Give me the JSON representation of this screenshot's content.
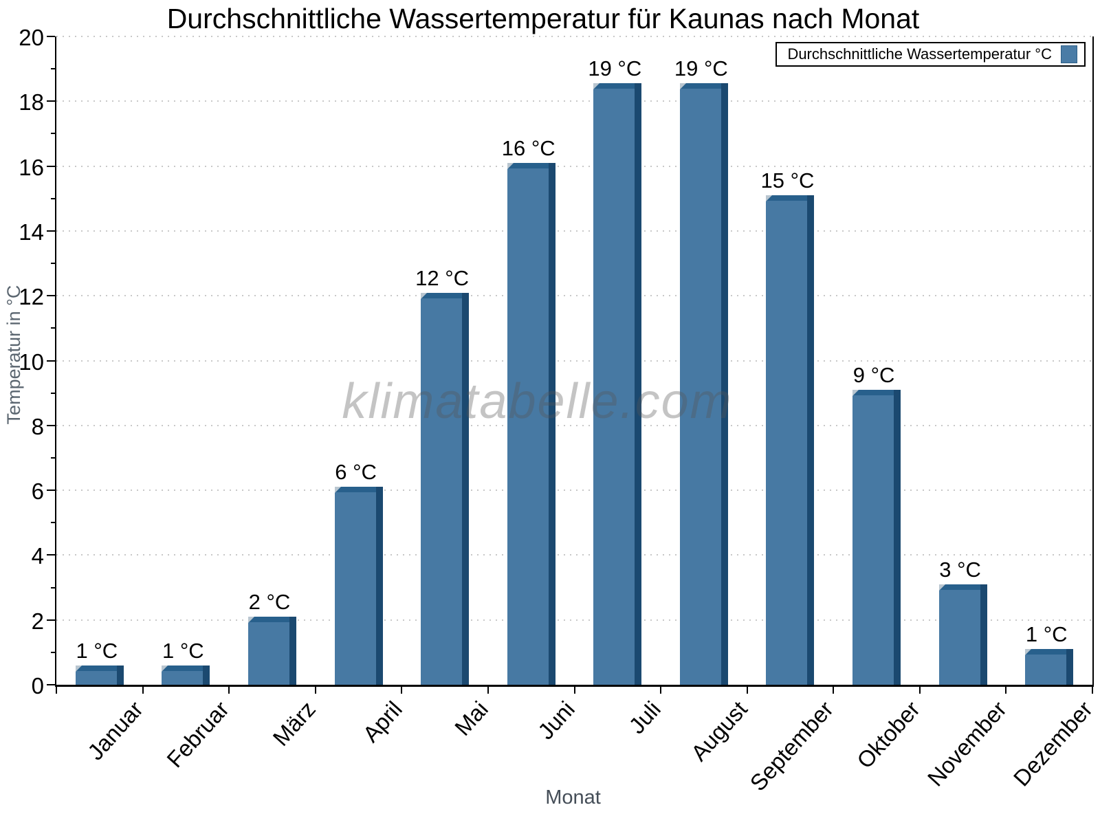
{
  "chart": {
    "title": "Durchschnittliche Wassertemperatur für Kaunas nach Monat",
    "legend_label": "Durchschnittliche Wassertemperatur °C",
    "watermark": "klimatabelle.com",
    "xlabel": "Monat",
    "ylabel": "Temperatur in °C"
  },
  "chart_data": {
    "type": "bar",
    "title": "Durchschnittliche Wassertemperatur für Kaunas nach Monat",
    "xlabel": "Monat",
    "ylabel": "Temperatur in °C",
    "legend": [
      "Durchschnittliche Wassertemperatur °C"
    ],
    "legend_position": "top-right",
    "categories": [
      "Januar",
      "Februar",
      "März",
      "April",
      "Mai",
      "Juni",
      "Juli",
      "August",
      "September",
      "Oktober",
      "November",
      "Dezember"
    ],
    "values": [
      1,
      1,
      2,
      6,
      12,
      16,
      19,
      19,
      15,
      9,
      3,
      1
    ],
    "value_labels": [
      "1 °C",
      "1 °C",
      "2 °C",
      "6 °C",
      "12 °C",
      "16 °C",
      "19 °C",
      "19 °C",
      "15 °C",
      "9 °C",
      "3 °C",
      "1 °C"
    ],
    "drawn_bar_heights": [
      0.6,
      0.6,
      2.1,
      6.1,
      12.1,
      16.1,
      18.55,
      18.55,
      15.1,
      9.1,
      3.1,
      1.1
    ],
    "ylim": [
      0,
      20
    ],
    "y_tick_step": 2,
    "y_minor_tick_step": 1,
    "grid": "horizontal-dotted",
    "colors": {
      "bar_face": "#4779a3",
      "bar_side": "#1b4970",
      "bar_top": "#28608c",
      "bar_corner_highlight": "#b9c6d0",
      "gridline": "#c8c8c8",
      "axis": "#000000",
      "y_axis_title": "#5b6670",
      "x_axis_title": "#454e58",
      "watermark_gray": "#a9a9a9"
    }
  }
}
